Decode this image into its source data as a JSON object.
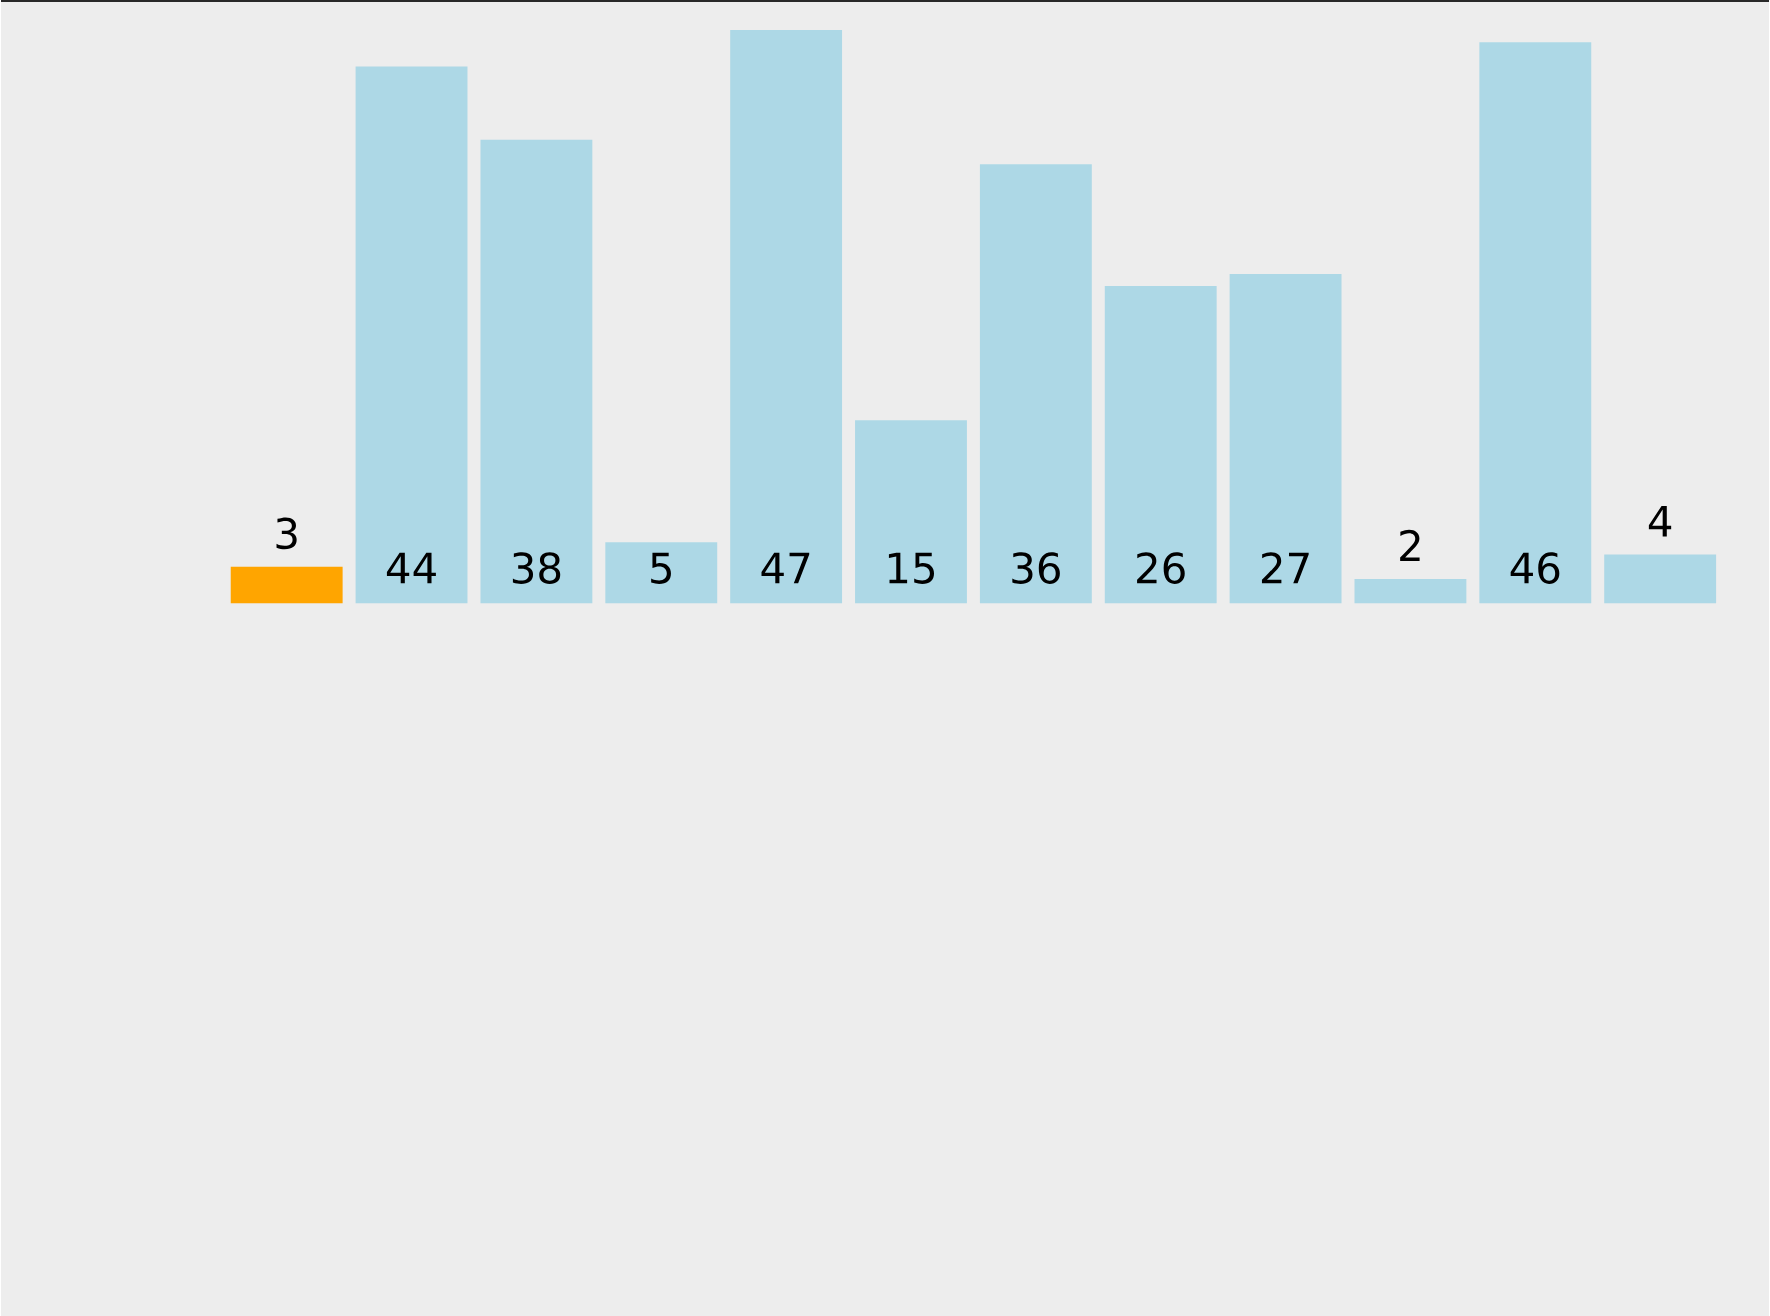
{
  "chart_data": {
    "type": "bar",
    "categories": [
      null,
      null,
      null,
      null,
      null,
      null,
      null,
      null,
      null,
      null,
      null,
      null
    ],
    "values": [
      3,
      44,
      38,
      5,
      47,
      15,
      36,
      26,
      27,
      2,
      46,
      4
    ],
    "colors": [
      "#ffa500",
      "#add8e6",
      "#add8e6",
      "#add8e6",
      "#add8e6",
      "#add8e6",
      "#add8e6",
      "#add8e6",
      "#add8e6",
      "#add8e6",
      "#add8e6",
      "#add8e6"
    ],
    "data_labels": true
  }
}
